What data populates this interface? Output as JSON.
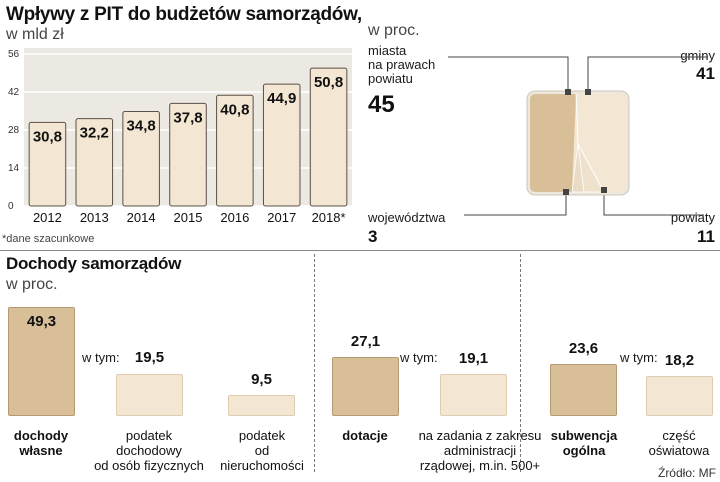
{
  "chart1": {
    "title": "Wpływy z PIT do budżetów samorządów,",
    "unit": "w mld zł",
    "footnote": "*dane szacunkowe",
    "y_ticks": [
      "56",
      "42",
      "28",
      "14",
      "0"
    ]
  },
  "chart2": {
    "unit": "w proc.",
    "labels": {
      "miasta": "miasta\nna prawach\npowiatu",
      "miasta_value": "45",
      "gminy": "gminy",
      "gminy_value": "41",
      "wojewodztwa": "województwa",
      "wojewodztwa_value": "3",
      "powiaty": "powiaty",
      "powiaty_value": "11"
    }
  },
  "chart3": {
    "title": "Dochody samorządów",
    "unit": "w proc.",
    "w_tym": "w tym:",
    "source": "Źródło: MF",
    "items": {
      "dochody_wlasne": {
        "label": "dochody\nwłasne",
        "value": "49,3"
      },
      "pit": {
        "label": "podatek\ndochodowy\nod osób fizycznych",
        "value": "19,5"
      },
      "nieruchomosci": {
        "label": "podatek\nod\nnieruchomości",
        "value": "9,5"
      },
      "dotacje": {
        "label": "dotacje",
        "value": "27,1"
      },
      "zadania": {
        "label": "na zadania z zakresu\nadministracji\nrządowej, m.in. 500+",
        "value": "19,1"
      },
      "subwencja": {
        "label": "subwencja\nogólna",
        "value": "23,6"
      },
      "oswiatowa": {
        "label": "część\noświatowa",
        "value": "18,2"
      }
    }
  },
  "chart_data": [
    {
      "type": "bar",
      "title": "Wpływy z PIT do budżetów samorządów,",
      "ylabel": "w mld zł",
      "categories": [
        "2012",
        "2013",
        "2014",
        "2015",
        "2016",
        "2017",
        "2018*"
      ],
      "values": [
        30.8,
        32.2,
        34.8,
        37.8,
        40.8,
        44.9,
        50.8
      ],
      "value_labels": [
        "30,8",
        "32,2",
        "34,8",
        "37,8",
        "40,8",
        "44,9",
        "50,8"
      ],
      "ylim": [
        0,
        56
      ],
      "grid": true
    },
    {
      "type": "pie",
      "title": "w proc.",
      "categories": [
        "miasta na prawach powiatu",
        "gminy",
        "województwa",
        "powiaty"
      ],
      "values": [
        45,
        41,
        3,
        11
      ]
    },
    {
      "type": "bar",
      "title": "Dochody samorządów",
      "ylabel": "w proc.",
      "categories": [
        "dochody własne",
        "podatek dochodowy od osób fizycznych",
        "podatek od nieruchomości",
        "dotacje",
        "na zadania z zakresu administracji rządowej, m.in. 500+",
        "subwencja ogólna",
        "część oświatowa"
      ],
      "values": [
        49.3,
        19.5,
        9.5,
        27.1,
        19.1,
        23.6,
        18.2
      ]
    }
  ]
}
